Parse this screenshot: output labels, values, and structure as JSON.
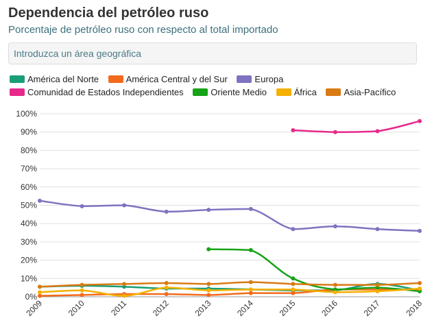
{
  "title": "Dependencia del petróleo ruso",
  "subtitle": "Porcentaje de petróleo ruso con respecto al total importado",
  "search": {
    "placeholder": "Introduzca un área geográfica",
    "value": ""
  },
  "chart_data": {
    "type": "line",
    "x": [
      2009,
      2010,
      2011,
      2012,
      2013,
      2014,
      2015,
      2016,
      2017,
      2018
    ],
    "x_tick_labels": [
      "2009",
      "2010",
      "2011",
      "2012",
      "2013",
      "2014",
      "2015",
      "2016",
      "2017",
      "2018"
    ],
    "ylim": [
      0,
      100
    ],
    "y_ticks": [
      0,
      10,
      20,
      30,
      40,
      50,
      60,
      70,
      80,
      90,
      100
    ],
    "y_tick_labels": [
      "0%",
      "10%",
      "20%",
      "30%",
      "40%",
      "50%",
      "60%",
      "70%",
      "80%",
      "90%",
      "100%"
    ],
    "grid": "horizontal",
    "legend_position": "top",
    "series": [
      {
        "name": "América del Norte",
        "color": "#1a9e77",
        "values": [
          5.5,
          6.0,
          5.5,
          4.5,
          4.5,
          4.0,
          3.5,
          3.5,
          7.0,
          3.5
        ]
      },
      {
        "name": "América Central y del Sur",
        "color": "#f26a1b",
        "values": [
          0.5,
          1.0,
          1.5,
          1.5,
          1.0,
          2.0,
          2.0,
          4.0,
          4.0,
          4.0
        ]
      },
      {
        "name": "Europa",
        "color": "#8072c0",
        "values": [
          52.5,
          49.5,
          50.0,
          46.5,
          47.5,
          48.0,
          37.0,
          38.5,
          37.0,
          36.0
        ]
      },
      {
        "name": "Comunidad de Estados Independientes",
        "color": "#e7298a",
        "values": [
          null,
          null,
          null,
          null,
          null,
          null,
          91.0,
          90.0,
          90.5,
          96.0
        ]
      },
      {
        "name": "Oriente Medio",
        "color": "#16a316",
        "values": [
          null,
          null,
          null,
          null,
          26.0,
          25.5,
          10.0,
          4.0,
          5.0,
          3.0
        ]
      },
      {
        "name": "África",
        "color": "#f5b000",
        "values": [
          2.5,
          3.5,
          0.5,
          5.0,
          3.5,
          4.0,
          4.0,
          2.5,
          3.0,
          4.5
        ]
      },
      {
        "name": "Asia-Pacífico",
        "color": "#d97a14",
        "values": [
          5.5,
          6.5,
          7.0,
          7.5,
          7.0,
          8.0,
          7.0,
          6.5,
          6.5,
          7.5
        ]
      }
    ]
  }
}
